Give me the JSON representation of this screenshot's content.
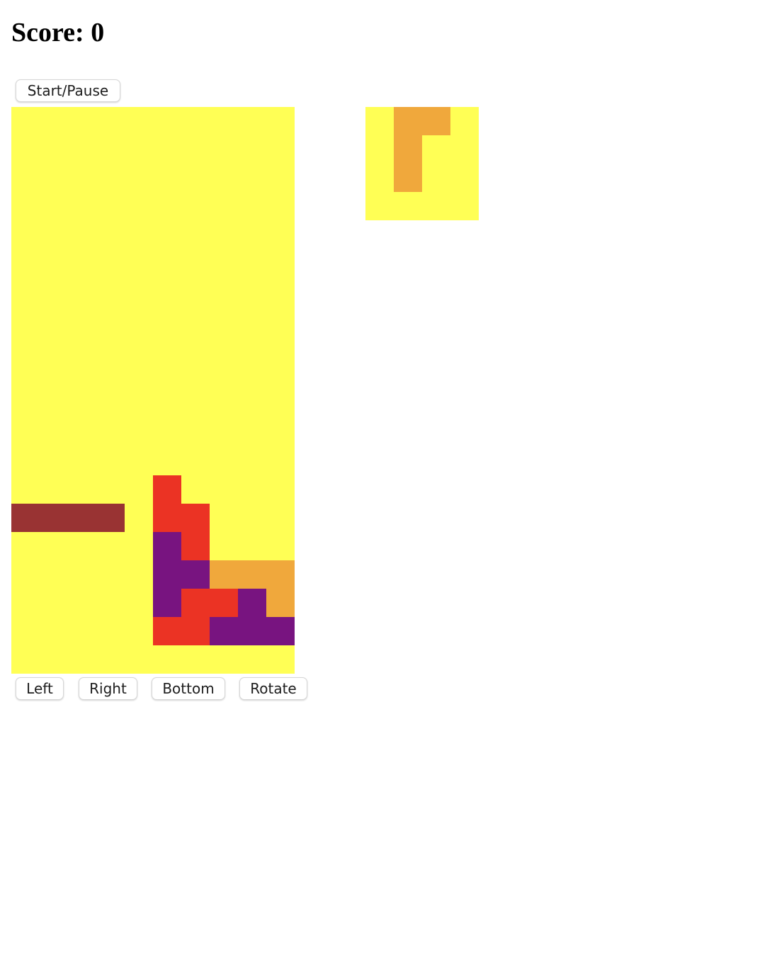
{
  "score": {
    "label": "Score:",
    "value": 0
  },
  "controls": {
    "start_pause": "Start/Pause",
    "left": "Left",
    "right": "Right",
    "bottom": "Bottom",
    "rotate": "Rotate"
  },
  "colors": {
    "empty": "#ffff55",
    "brown": "#993333",
    "red": "#eb3324",
    "purple": "#781480",
    "orange": "#f0a83c"
  },
  "board": {
    "columns": 10,
    "rows": 20,
    "grid": [
      "..........",
      "..........",
      "..........",
      "..........",
      "..........",
      "..........",
      "..........",
      "..........",
      "..........",
      "..........",
      "..........",
      "..........",
      "..........",
      ".....R....",
      "BBBB.RR...",
      ".....PR...",
      ".....PPOOO",
      ".....PRRPO",
      ".....RRPPP",
      ".........."
    ]
  },
  "next_piece": {
    "columns": 4,
    "rows": 4,
    "grid": [
      ".OO.",
      ".O..",
      ".O..",
      "...."
    ]
  },
  "legend": {
    "B": "brown",
    "R": "red",
    "P": "purple",
    "O": "orange"
  }
}
